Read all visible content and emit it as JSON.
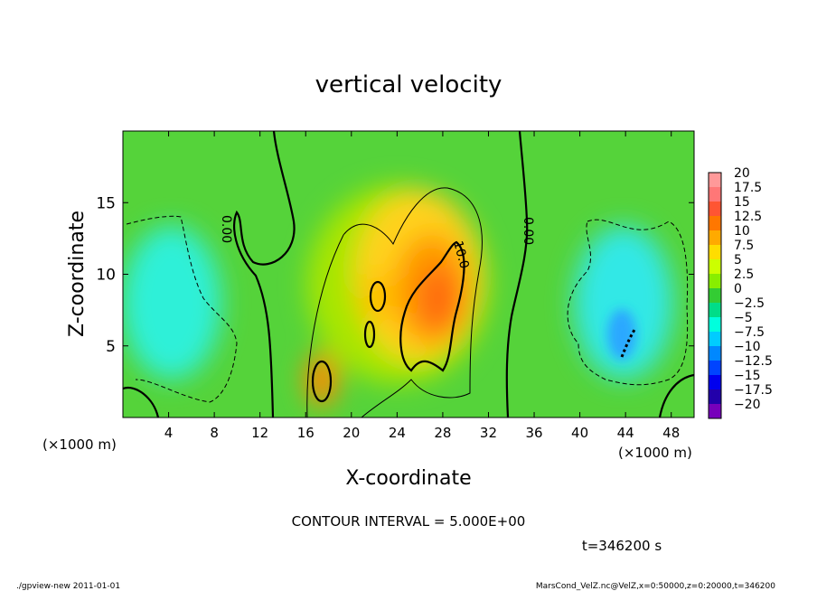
{
  "chart_data": {
    "type": "heatmap",
    "title": "vertical velocity",
    "xlabel": "X-coordinate",
    "ylabel": "Z-coordinate",
    "x_unit": "(×1000 m)",
    "x_unit_right": "(×1000 m)",
    "xlim": [
      0,
      50
    ],
    "ylim": [
      0,
      20
    ],
    "x_ticks": [
      "4",
      "8",
      "12",
      "16",
      "20",
      "24",
      "28",
      "32",
      "36",
      "40",
      "44",
      "48"
    ],
    "y_ticks": [
      "5",
      "10",
      "15"
    ],
    "colorbar_labels": [
      "20",
      "17.5",
      "15",
      "12.5",
      "10",
      "7.5",
      "5",
      "2.5",
      "0",
      "−2.5",
      "−5",
      "−7.5",
      "−10",
      "−12.5",
      "−15",
      "−17.5",
      "−20"
    ],
    "colorbar_colors": [
      "#ff9999",
      "#ff7777",
      "#ff5533",
      "#ff7700",
      "#ffaa00",
      "#ffdd00",
      "#ccff00",
      "#88ee00",
      "#33cc33",
      "#00dd88",
      "#00ffdd",
      "#00ccff",
      "#0088ff",
      "#0044ff",
      "#0000ee",
      "#2200aa",
      "#7700bb"
    ],
    "contour_labels": [
      "0.00",
      "0.00",
      "10.0"
    ],
    "contour_interval": "CONTOUR INTERVAL = 5.000E+00",
    "time_label": "t=346200 s",
    "features": [
      {
        "kind": "updraft",
        "x": 27.5,
        "z": 7.5,
        "peak": 13
      },
      {
        "kind": "updraft",
        "x": 17.5,
        "z": 3,
        "peak": 12
      },
      {
        "kind": "updraft",
        "x": 21.5,
        "z": 8.8,
        "peak": 7
      },
      {
        "kind": "downdraft",
        "x": 4,
        "z": 8,
        "peak": -5
      },
      {
        "kind": "downdraft",
        "x": 44.5,
        "z": 6,
        "peak": -10
      }
    ]
  },
  "footer": {
    "left": "./gpview-new  2011-01-01",
    "right": "MarsCond_VelZ.nc@VelZ,x=0:50000,z=0:20000,t=346200"
  }
}
